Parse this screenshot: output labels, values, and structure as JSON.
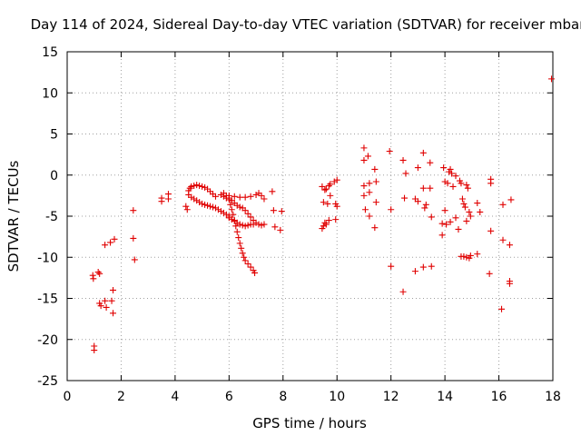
{
  "chart_data": {
    "type": "scatter",
    "title": "Day 114 of 2024, Sidereal Day-to-day VTEC variation (SDTVAR) for receiver mbar",
    "xlabel": "GPS time / hours",
    "ylabel": "SDTVAR / TECUs",
    "xlim": [
      0,
      18
    ],
    "ylim": [
      -25,
      15
    ],
    "xticks": [
      0,
      2,
      4,
      6,
      8,
      10,
      12,
      14,
      16,
      18
    ],
    "yticks": [
      15,
      10,
      5,
      0,
      -5,
      -10,
      -15,
      -20,
      -25
    ],
    "grid": true,
    "marker": "plus",
    "color": "#e00000",
    "series": [
      {
        "name": "SDTVAR",
        "points": [
          [
            0.95,
            -12.2
          ],
          [
            0.97,
            -12.6
          ],
          [
            1.0,
            -20.8
          ],
          [
            1.0,
            -21.3
          ],
          [
            1.15,
            -11.8
          ],
          [
            1.2,
            -15.6
          ],
          [
            1.2,
            -12.0
          ],
          [
            1.25,
            -15.9
          ],
          [
            1.4,
            -15.3
          ],
          [
            1.4,
            -8.5
          ],
          [
            1.45,
            -16.1
          ],
          [
            1.6,
            -8.2
          ],
          [
            1.65,
            -15.3
          ],
          [
            1.7,
            -14.0
          ],
          [
            1.7,
            -16.8
          ],
          [
            1.75,
            -7.8
          ],
          [
            2.45,
            -4.3
          ],
          [
            2.45,
            -7.7
          ],
          [
            2.5,
            -10.3
          ],
          [
            3.5,
            -2.8
          ],
          [
            3.5,
            -3.2
          ],
          [
            3.75,
            -2.3
          ],
          [
            3.75,
            -2.9
          ],
          [
            4.4,
            -3.8
          ],
          [
            4.45,
            -4.2
          ],
          [
            4.5,
            -1.9
          ],
          [
            4.55,
            -1.6
          ],
          [
            4.6,
            -1.4
          ],
          [
            4.7,
            -1.3
          ],
          [
            4.8,
            -1.2
          ],
          [
            4.9,
            -1.3
          ],
          [
            5.0,
            -1.4
          ],
          [
            5.1,
            -1.5
          ],
          [
            5.2,
            -1.7
          ],
          [
            5.3,
            -2.0
          ],
          [
            5.4,
            -2.3
          ],
          [
            5.5,
            -2.6
          ],
          [
            4.5,
            -2.4
          ],
          [
            4.6,
            -2.7
          ],
          [
            4.7,
            -2.9
          ],
          [
            4.8,
            -3.1
          ],
          [
            4.9,
            -3.3
          ],
          [
            5.0,
            -3.5
          ],
          [
            5.1,
            -3.6
          ],
          [
            5.2,
            -3.7
          ],
          [
            5.3,
            -3.8
          ],
          [
            5.4,
            -3.9
          ],
          [
            5.5,
            -4.0
          ],
          [
            5.6,
            -4.2
          ],
          [
            5.7,
            -4.4
          ],
          [
            5.8,
            -4.6
          ],
          [
            5.9,
            -4.8
          ],
          [
            6.0,
            -5.0
          ],
          [
            5.7,
            -2.4
          ],
          [
            5.8,
            -2.6
          ],
          [
            5.9,
            -2.8
          ],
          [
            6.0,
            -3.0
          ],
          [
            6.05,
            -3.6
          ],
          [
            6.1,
            -4.2
          ],
          [
            6.15,
            -4.8
          ],
          [
            6.2,
            -5.5
          ],
          [
            6.25,
            -6.2
          ],
          [
            6.3,
            -6.9
          ],
          [
            6.35,
            -7.6
          ],
          [
            6.4,
            -8.3
          ],
          [
            6.45,
            -8.9
          ],
          [
            6.5,
            -9.5
          ],
          [
            6.55,
            -10.0
          ],
          [
            6.6,
            -10.4
          ],
          [
            6.7,
            -10.8
          ],
          [
            6.8,
            -11.2
          ],
          [
            6.9,
            -11.6
          ],
          [
            6.95,
            -11.9
          ],
          [
            5.8,
            -2.2
          ],
          [
            5.9,
            -2.5
          ],
          [
            6.0,
            -2.8
          ],
          [
            6.1,
            -3.1
          ],
          [
            6.2,
            -3.4
          ],
          [
            6.3,
            -3.7
          ],
          [
            6.4,
            -3.9
          ],
          [
            6.5,
            -4.0
          ],
          [
            6.6,
            -4.3
          ],
          [
            6.7,
            -4.7
          ],
          [
            6.8,
            -5.1
          ],
          [
            6.9,
            -5.5
          ],
          [
            7.0,
            -5.8
          ],
          [
            7.1,
            -6.0
          ],
          [
            7.2,
            -6.1
          ],
          [
            7.3,
            -6.0
          ],
          [
            6.0,
            -5.2
          ],
          [
            6.1,
            -5.4
          ],
          [
            6.2,
            -5.6
          ],
          [
            6.3,
            -5.8
          ],
          [
            6.4,
            -6.0
          ],
          [
            6.5,
            -6.1
          ],
          [
            6.6,
            -6.2
          ],
          [
            6.7,
            -6.1
          ],
          [
            6.8,
            -6.0
          ],
          [
            6.9,
            -6.0
          ],
          [
            6.0,
            -2.5
          ],
          [
            6.2,
            -2.6
          ],
          [
            6.4,
            -2.7
          ],
          [
            6.6,
            -2.7
          ],
          [
            6.8,
            -2.6
          ],
          [
            7.0,
            -2.4
          ],
          [
            7.1,
            -2.2
          ],
          [
            7.2,
            -2.5
          ],
          [
            7.3,
            -2.9
          ],
          [
            7.6,
            -2.0
          ],
          [
            7.65,
            -4.3
          ],
          [
            7.7,
            -6.3
          ],
          [
            7.9,
            -6.7
          ],
          [
            7.95,
            -4.4
          ],
          [
            9.45,
            -1.4
          ],
          [
            9.45,
            -6.5
          ],
          [
            9.5,
            -6.2
          ],
          [
            9.5,
            -3.3
          ],
          [
            9.55,
            -1.8
          ],
          [
            9.55,
            -5.8
          ],
          [
            9.6,
            -1.7
          ],
          [
            9.6,
            -6.0
          ],
          [
            9.65,
            -3.5
          ],
          [
            9.7,
            -5.5
          ],
          [
            9.7,
            -1.3
          ],
          [
            9.75,
            -2.5
          ],
          [
            9.75,
            -1.1
          ],
          [
            9.9,
            -0.8
          ],
          [
            9.95,
            -3.5
          ],
          [
            9.95,
            -5.4
          ],
          [
            10.0,
            -0.6
          ],
          [
            10.0,
            -3.8
          ],
          [
            11.0,
            3.3
          ],
          [
            11.0,
            1.8
          ],
          [
            11.0,
            -1.3
          ],
          [
            11.0,
            -2.5
          ],
          [
            11.05,
            -4.2
          ],
          [
            11.15,
            2.3
          ],
          [
            11.2,
            -1.0
          ],
          [
            11.2,
            -2.1
          ],
          [
            11.2,
            -5.0
          ],
          [
            11.4,
            -6.4
          ],
          [
            11.4,
            0.7
          ],
          [
            11.45,
            -3.3
          ],
          [
            11.45,
            -0.8
          ],
          [
            11.95,
            2.9
          ],
          [
            12.0,
            -4.2
          ],
          [
            12.0,
            -11.1
          ],
          [
            12.45,
            1.8
          ],
          [
            12.45,
            -14.2
          ],
          [
            12.5,
            -2.8
          ],
          [
            12.55,
            0.2
          ],
          [
            12.9,
            -2.9
          ],
          [
            12.9,
            -11.7
          ],
          [
            13.0,
            0.9
          ],
          [
            13.0,
            -3.2
          ],
          [
            13.2,
            2.7
          ],
          [
            13.2,
            -1.6
          ],
          [
            13.2,
            -11.2
          ],
          [
            13.25,
            -4.0
          ],
          [
            13.3,
            -3.6
          ],
          [
            13.45,
            1.5
          ],
          [
            13.45,
            -1.6
          ],
          [
            13.5,
            -5.1
          ],
          [
            13.5,
            -11.1
          ],
          [
            13.9,
            -5.9
          ],
          [
            13.9,
            -7.3
          ],
          [
            13.95,
            0.9
          ],
          [
            14.0,
            -4.3
          ],
          [
            14.0,
            -0.8
          ],
          [
            14.05,
            -6.0
          ],
          [
            14.1,
            -1.0
          ],
          [
            14.15,
            0.4
          ],
          [
            14.2,
            -5.7
          ],
          [
            14.2,
            0.7
          ],
          [
            14.25,
            0.2
          ],
          [
            14.3,
            -1.4
          ],
          [
            14.4,
            -0.1
          ],
          [
            14.4,
            -5.2
          ],
          [
            14.5,
            -6.6
          ],
          [
            14.55,
            -0.7
          ],
          [
            14.6,
            -1.0
          ],
          [
            14.65,
            -2.9
          ],
          [
            14.7,
            -3.5
          ],
          [
            14.75,
            -3.9
          ],
          [
            14.8,
            -1.2
          ],
          [
            14.8,
            -5.6
          ],
          [
            14.85,
            -1.6
          ],
          [
            14.9,
            -4.5
          ],
          [
            14.95,
            -5.0
          ],
          [
            14.6,
            -9.9
          ],
          [
            14.7,
            -9.9
          ],
          [
            14.8,
            -10.0
          ],
          [
            14.9,
            -10.1
          ],
          [
            14.95,
            -9.8
          ],
          [
            15.2,
            -3.4
          ],
          [
            15.2,
            -9.6
          ],
          [
            15.3,
            -4.5
          ],
          [
            15.7,
            -0.5
          ],
          [
            15.7,
            -1.0
          ],
          [
            15.7,
            -6.8
          ],
          [
            15.65,
            -12.0
          ],
          [
            16.1,
            -16.3
          ],
          [
            16.15,
            -3.6
          ],
          [
            16.15,
            -7.9
          ],
          [
            16.4,
            -12.9
          ],
          [
            16.4,
            -13.2
          ],
          [
            16.4,
            -8.5
          ],
          [
            16.45,
            -3.0
          ],
          [
            17.95,
            11.7
          ]
        ]
      }
    ]
  }
}
